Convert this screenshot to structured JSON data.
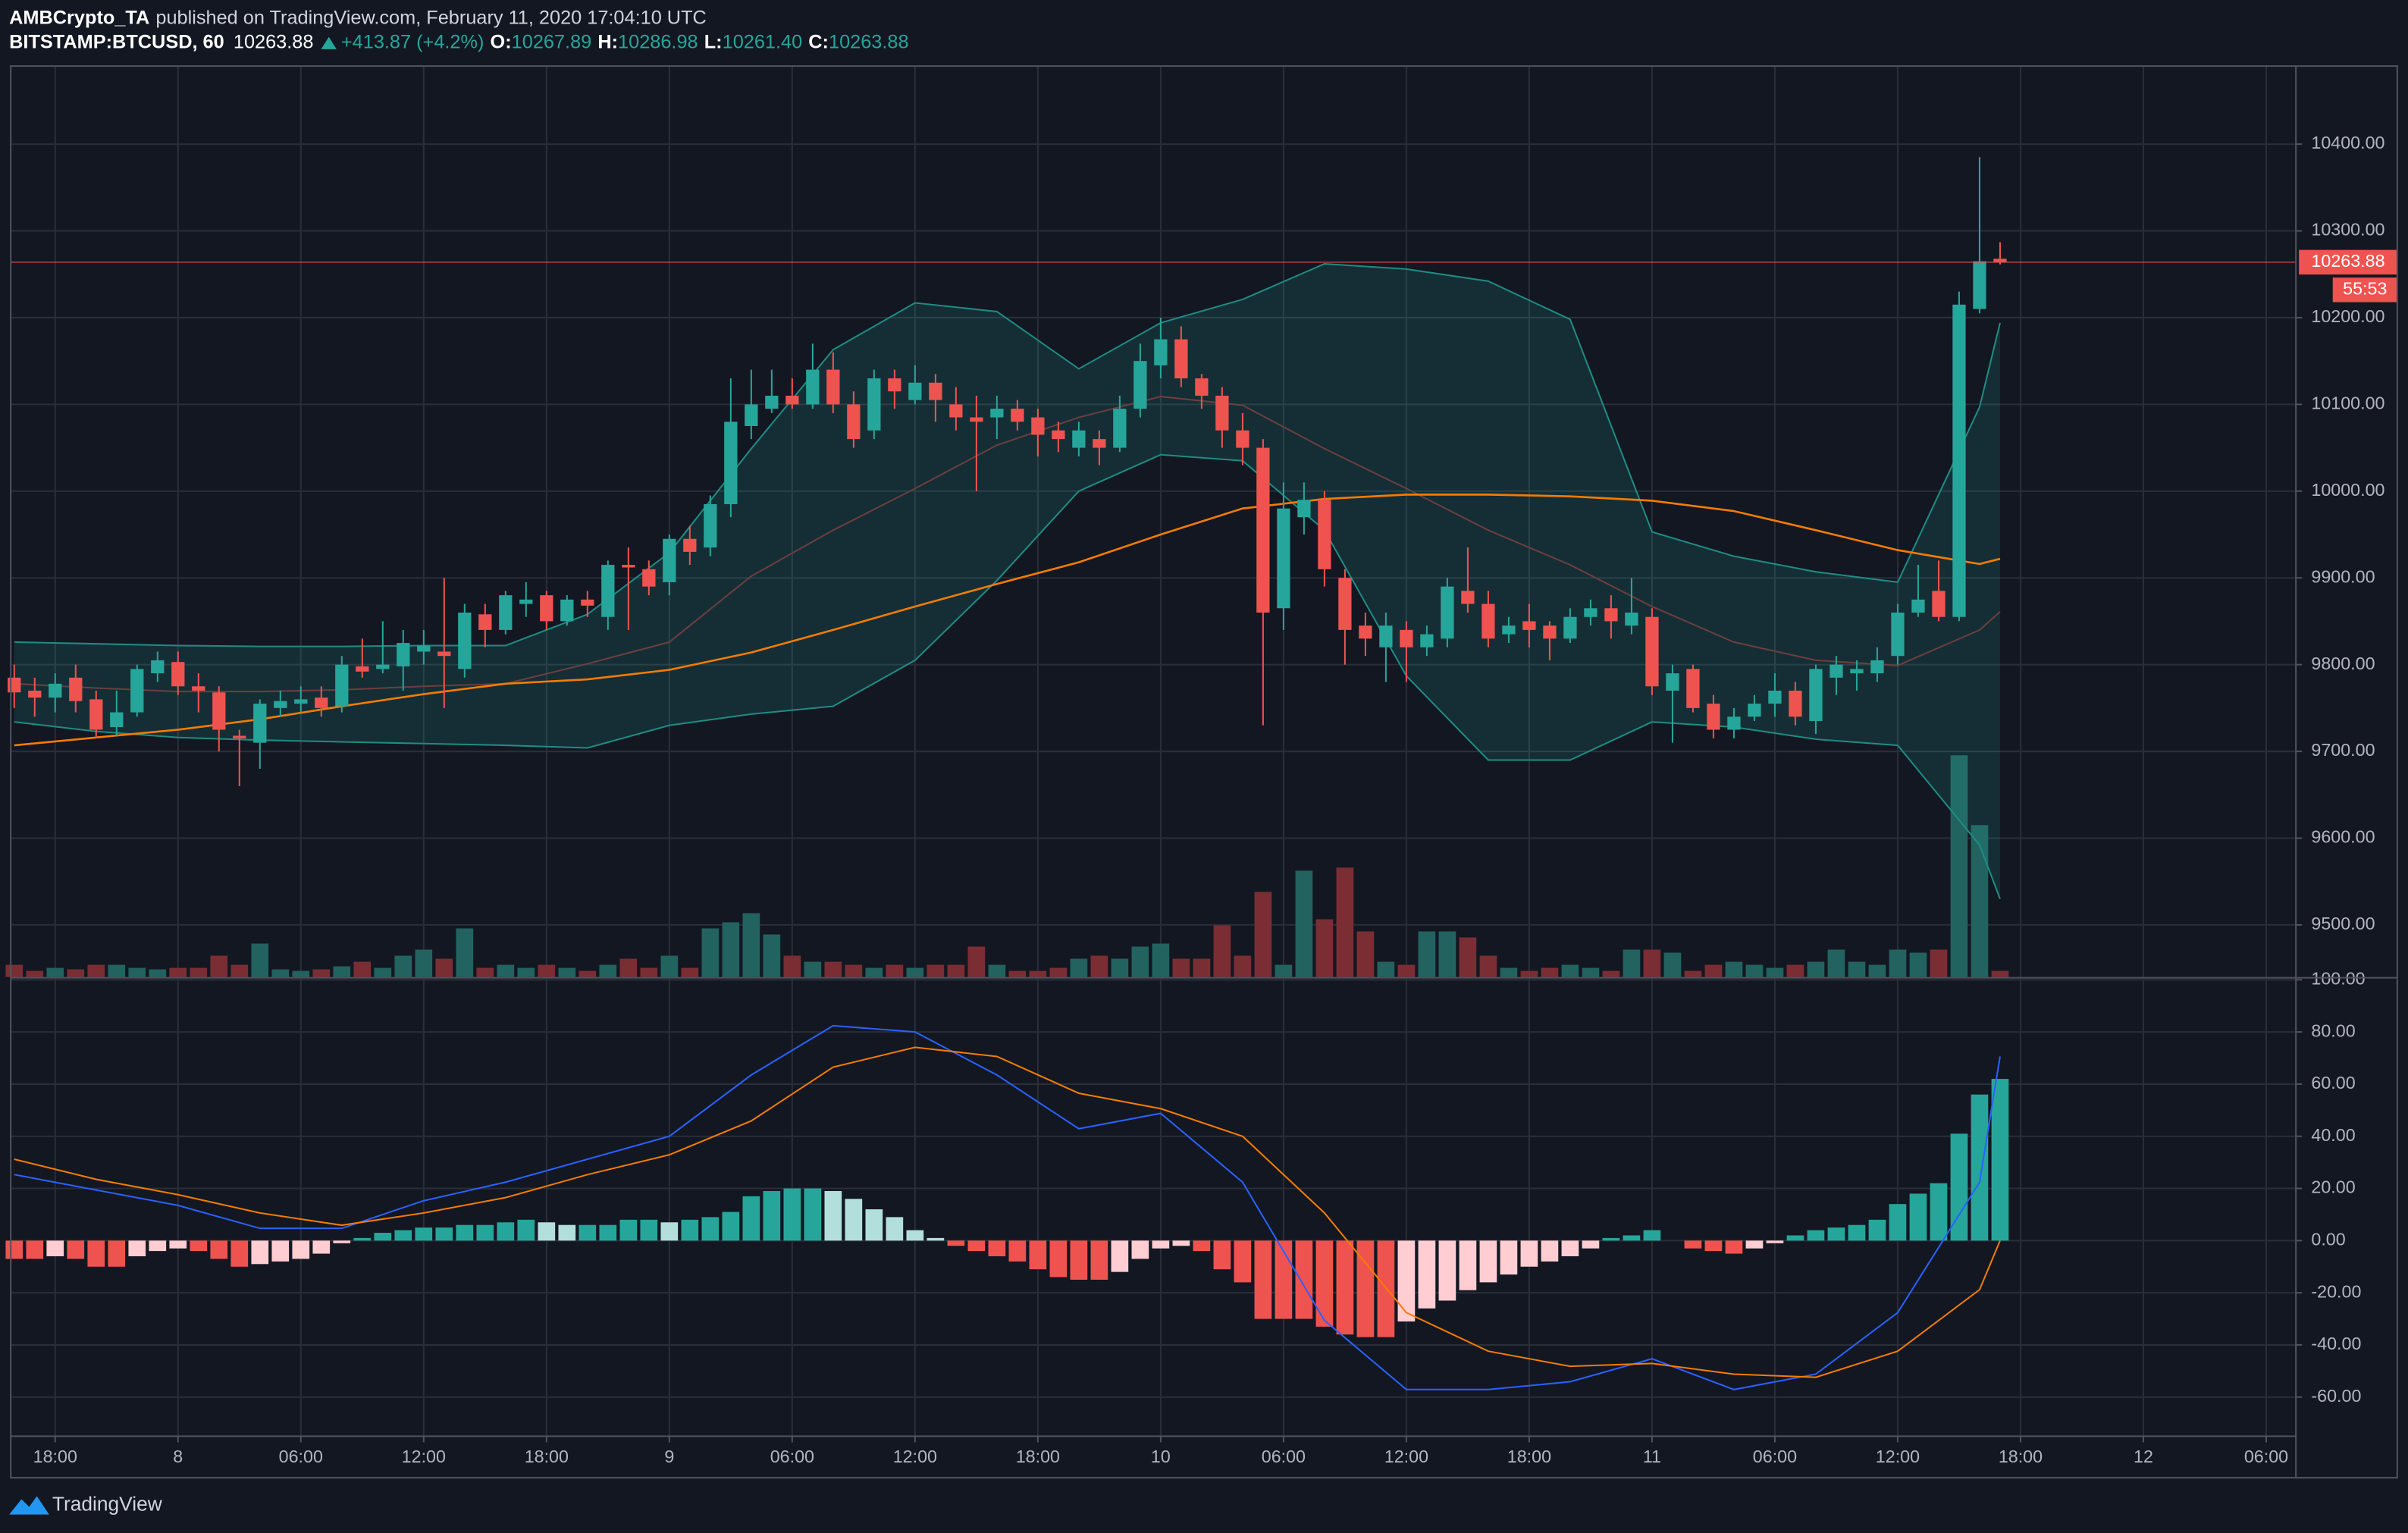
{
  "header": {
    "author": "AMBCrypto_TA",
    "published": "published on TradingView.com, February 11, 2020 17:04:10 UTC",
    "symbol": "BITSTAMP:BTCUSD, 60",
    "price": "10263.88",
    "change": "+413.87 (+4.2%)",
    "o_label": "O:",
    "o": "10267.89",
    "h_label": "H:",
    "h": "10286.98",
    "l_label": "L:",
    "l": "10261.40",
    "c_label": "C:",
    "c": "10263.88"
  },
  "footer": {
    "brand": "TradingView"
  },
  "chart_data": [
    {
      "type": "candlestick",
      "up_color": "#26a69a",
      "down_color": "#ef5350",
      "volume_up_color": "#22625f",
      "volume_down_color": "#7a2e33",
      "xlim": [
        -0.17,
        111.45
      ],
      "ylim": [
        9440,
        10490
      ],
      "yticks": [
        {
          "value": 9500,
          "label": "9500.00"
        },
        {
          "value": 9600,
          "label": "9600.00"
        },
        {
          "value": 9700,
          "label": "9700.00"
        },
        {
          "value": 9800,
          "label": "9800.00"
        },
        {
          "value": 9900,
          "label": "9900.00"
        },
        {
          "value": 10000,
          "label": "10000.00"
        },
        {
          "value": 10100,
          "label": "10100.00"
        },
        {
          "value": 10200,
          "label": "10200.00"
        },
        {
          "value": 10300,
          "label": "10300.00"
        },
        {
          "value": 10400,
          "label": "10400.00"
        }
      ],
      "grid": true,
      "candles": [
        [
          9785,
          9800,
          9750,
          9768
        ],
        [
          9770,
          9785,
          9740,
          9762
        ],
        [
          9762,
          9790,
          9745,
          9778
        ],
        [
          9785,
          9800,
          9745,
          9758
        ],
        [
          9760,
          9770,
          9715,
          9725
        ],
        [
          9728,
          9770,
          9718,
          9745
        ],
        [
          9745,
          9800,
          9740,
          9795
        ],
        [
          9790,
          9815,
          9780,
          9805
        ],
        [
          9803,
          9815,
          9765,
          9775
        ],
        [
          9775,
          9790,
          9745,
          9770
        ],
        [
          9768,
          9775,
          9700,
          9725
        ],
        [
          9718,
          9725,
          9660,
          9715
        ],
        [
          9710,
          9760,
          9680,
          9755
        ],
        [
          9750,
          9770,
          9740,
          9758
        ],
        [
          9755,
          9775,
          9745,
          9760
        ],
        [
          9762,
          9775,
          9740,
          9750
        ],
        [
          9752,
          9810,
          9745,
          9800
        ],
        [
          9798,
          9830,
          9785,
          9792
        ],
        [
          9795,
          9850,
          9790,
          9800
        ],
        [
          9798,
          9840,
          9770,
          9825
        ],
        [
          9815,
          9840,
          9800,
          9822
        ],
        [
          9815,
          9900,
          9750,
          9810
        ],
        [
          9795,
          9870,
          9785,
          9860
        ],
        [
          9858,
          9870,
          9820,
          9840
        ],
        [
          9840,
          9885,
          9835,
          9880
        ],
        [
          9870,
          9895,
          9855,
          9875
        ],
        [
          9880,
          9885,
          9840,
          9850
        ],
        [
          9850,
          9880,
          9845,
          9875
        ],
        [
          9875,
          9885,
          9855,
          9868
        ],
        [
          9855,
          9920,
          9840,
          9915
        ],
        [
          9915,
          9935,
          9840,
          9912
        ],
        [
          9910,
          9920,
          9880,
          9890
        ],
        [
          9895,
          9950,
          9880,
          9945
        ],
        [
          9945,
          9960,
          9915,
          9930
        ],
        [
          9935,
          9995,
          9925,
          9985
        ],
        [
          9985,
          10130,
          9970,
          10080
        ],
        [
          10075,
          10140,
          10060,
          10100
        ],
        [
          10095,
          10140,
          10090,
          10110
        ],
        [
          10110,
          10130,
          10095,
          10100
        ],
        [
          10100,
          10170,
          10095,
          10140
        ],
        [
          10140,
          10160,
          10090,
          10100
        ],
        [
          10100,
          10115,
          10050,
          10060
        ],
        [
          10070,
          10140,
          10060,
          10130
        ],
        [
          10130,
          10140,
          10095,
          10115
        ],
        [
          10105,
          10145,
          10100,
          10125
        ],
        [
          10125,
          10135,
          10080,
          10105
        ],
        [
          10100,
          10120,
          10070,
          10085
        ],
        [
          10085,
          10110,
          10000,
          10080
        ],
        [
          10085,
          10110,
          10060,
          10095
        ],
        [
          10095,
          10105,
          10070,
          10080
        ],
        [
          10085,
          10095,
          10040,
          10065
        ],
        [
          10070,
          10080,
          10045,
          10060
        ],
        [
          10050,
          10080,
          10040,
          10070
        ],
        [
          10060,
          10070,
          10030,
          10050
        ],
        [
          10050,
          10110,
          10045,
          10095
        ],
        [
          10095,
          10170,
          10085,
          10150
        ],
        [
          10145,
          10200,
          10130,
          10175
        ],
        [
          10175,
          10190,
          10120,
          10130
        ],
        [
          10130,
          10135,
          10095,
          10110
        ],
        [
          10110,
          10120,
          10050,
          10070
        ],
        [
          10070,
          10090,
          10030,
          10050
        ],
        [
          10050,
          10060,
          9730,
          9860
        ],
        [
          9865,
          10010,
          9840,
          9980
        ],
        [
          9970,
          10010,
          9950,
          9990
        ],
        [
          9990,
          10000,
          9890,
          9910
        ],
        [
          9900,
          9910,
          9800,
          9840
        ],
        [
          9845,
          9860,
          9810,
          9830
        ],
        [
          9820,
          9860,
          9780,
          9845
        ],
        [
          9840,
          9850,
          9780,
          9820
        ],
        [
          9820,
          9845,
          9810,
          9835
        ],
        [
          9830,
          9900,
          9820,
          9890
        ],
        [
          9885,
          9935,
          9860,
          9870
        ],
        [
          9870,
          9885,
          9820,
          9830
        ],
        [
          9835,
          9855,
          9825,
          9845
        ],
        [
          9850,
          9870,
          9820,
          9840
        ],
        [
          9845,
          9850,
          9805,
          9830
        ],
        [
          9830,
          9865,
          9825,
          9855
        ],
        [
          9855,
          9875,
          9845,
          9865
        ],
        [
          9865,
          9880,
          9830,
          9850
        ],
        [
          9845,
          9900,
          9835,
          9860
        ],
        [
          9855,
          9865,
          9765,
          9775
        ],
        [
          9770,
          9800,
          9710,
          9790
        ],
        [
          9795,
          9800,
          9745,
          9750
        ],
        [
          9755,
          9765,
          9715,
          9725
        ],
        [
          9725,
          9750,
          9715,
          9740
        ],
        [
          9740,
          9765,
          9735,
          9755
        ],
        [
          9755,
          9790,
          9740,
          9770
        ],
        [
          9770,
          9780,
          9730,
          9740
        ],
        [
          9735,
          9800,
          9720,
          9795
        ],
        [
          9785,
          9810,
          9765,
          9800
        ],
        [
          9790,
          9805,
          9770,
          9795
        ],
        [
          9790,
          9820,
          9780,
          9805
        ],
        [
          9810,
          9870,
          9800,
          9860
        ],
        [
          9860,
          9915,
          9855,
          9875
        ],
        [
          9885,
          9920,
          9850,
          9855
        ],
        [
          9855,
          10230,
          9850,
          10215
        ],
        [
          10210,
          10385,
          10205,
          10265
        ],
        [
          10267.89,
          10286.98,
          10261.4,
          10263.88
        ]
      ],
      "volume": {
        "ylim": [
          0,
          600
        ],
        "values": [
          8,
          4,
          6,
          5,
          8,
          8,
          6,
          5,
          6,
          6,
          14,
          8,
          22,
          5,
          4,
          5,
          7,
          10,
          6,
          14,
          18,
          12,
          32,
          6,
          8,
          6,
          8,
          6,
          4,
          8,
          12,
          6,
          14,
          6,
          32,
          36,
          42,
          28,
          14,
          10,
          10,
          8,
          6,
          8,
          6,
          8,
          8,
          20,
          8,
          4,
          4,
          6,
          12,
          14,
          12,
          20,
          22,
          12,
          12,
          34,
          14,
          56,
          8,
          70,
          38,
          72,
          30,
          10,
          8,
          30,
          30,
          26,
          14,
          6,
          4,
          6,
          8,
          6,
          4,
          18,
          18,
          16,
          4,
          8,
          10,
          8,
          6,
          8,
          10,
          18,
          10,
          8,
          18,
          16,
          18,
          146,
          100,
          4
        ]
      },
      "bands": {
        "fill": "rgba(38,166,154,0.16)",
        "line_color": "#1f8c83",
        "basis_color": "#6b3f3e",
        "x": [
          0,
          4,
          8,
          12,
          16,
          20,
          24,
          28,
          32,
          36,
          40,
          44,
          48,
          52,
          56,
          60,
          64,
          68,
          72,
          76,
          80,
          84,
          88,
          92,
          96,
          97
        ],
        "upper": [
          9826,
          9824,
          9822,
          9821,
          9821,
          9822,
          9822,
          9858,
          9929,
          10049,
          10163,
          10217,
          10207,
          10141,
          10194,
          10221,
          10262,
          10256,
          10242,
          10198,
          9953,
          9925,
          9907,
          9895,
          10097,
          10194
        ],
        "basis": [
          9778,
          9773,
          9769,
          9769,
          9771,
          9775,
          9778,
          9801,
          9826,
          9902,
          9955,
          10003,
          10053,
          10085,
          10109,
          10099,
          10049,
          10003,
          9955,
          9915,
          9867,
          9826,
          9805,
          9799,
          9840,
          9861
        ],
        "lower": [
          9734,
          9723,
          9716,
          9713,
          9711,
          9709,
          9707,
          9704,
          9730,
          9743,
          9752,
          9805,
          9897,
          10000,
          10042,
          10035,
          9955,
          9787,
          9690,
          9690,
          9734,
          9728,
          9714,
          9707,
          9592,
          9530
        ]
      },
      "ma": {
        "color": "#f57c00",
        "x": [
          0,
          4,
          8,
          12,
          16,
          20,
          24,
          28,
          32,
          36,
          40,
          44,
          48,
          52,
          56,
          60,
          64,
          68,
          72,
          76,
          80,
          84,
          88,
          92,
          96,
          97
        ],
        "values": [
          9707,
          9716,
          9725,
          9737,
          9752,
          9766,
          9778,
          9783,
          9794,
          9814,
          9840,
          9867,
          9893,
          9918,
          9950,
          9980,
          9991,
          9996,
          9996,
          9994,
          9989,
          9977,
          9955,
          9932,
          9916,
          9922
        ]
      },
      "last_price": 10263.88,
      "last_price_color": "#ef5350",
      "countdown": "55:53"
    },
    {
      "type": "macd",
      "xlim": [
        -0.17,
        111.45
      ],
      "ylim": [
        -75,
        100.5
      ],
      "xticks": [
        {
          "value": 2,
          "label": "18:00"
        },
        {
          "value": 8,
          "label": "8"
        },
        {
          "value": 14,
          "label": "06:00"
        },
        {
          "value": 20,
          "label": "12:00"
        },
        {
          "value": 26,
          "label": "18:00"
        },
        {
          "value": 32,
          "label": "9"
        },
        {
          "value": 38,
          "label": "06:00"
        },
        {
          "value": 44,
          "label": "12:00"
        },
        {
          "value": 50,
          "label": "18:00"
        },
        {
          "value": 56,
          "label": "10"
        },
        {
          "value": 62,
          "label": "06:00"
        },
        {
          "value": 68,
          "label": "12:00"
        },
        {
          "value": 74,
          "label": "18:00"
        },
        {
          "value": 80,
          "label": "11"
        },
        {
          "value": 86,
          "label": "06:00"
        },
        {
          "value": 92,
          "label": "12:00"
        },
        {
          "value": 98,
          "label": "18:00"
        },
        {
          "value": 104,
          "label": "12"
        },
        {
          "value": 110,
          "label": "06:00"
        }
      ],
      "yticks": [
        {
          "value": -60,
          "label": "-60.00"
        },
        {
          "value": -40,
          "label": "-40.00"
        },
        {
          "value": -20,
          "label": "-20.00"
        },
        {
          "value": 0,
          "label": "0.00"
        },
        {
          "value": 20,
          "label": "20.00"
        },
        {
          "value": 40,
          "label": "40.00"
        },
        {
          "value": 60,
          "label": "60.00"
        },
        {
          "value": 80,
          "label": "80.00"
        },
        {
          "value": 100,
          "label": "100.00"
        }
      ],
      "grid": true,
      "histogram_colors": {
        "rising_above": "#26a69a",
        "falling_above": "#b2dfdb",
        "falling_below": "#ef5350",
        "rising_below": "#ffcdd2"
      },
      "histogram": [
        -7,
        -7,
        -6,
        -7,
        -10,
        -10,
        -6,
        -4,
        -3,
        -4,
        -7,
        -10,
        -9,
        -8,
        -7,
        -5,
        -1,
        1,
        3,
        4,
        5,
        5,
        6,
        6,
        7,
        8,
        7,
        6,
        6,
        6,
        8,
        8,
        7,
        8,
        9,
        11,
        17,
        19,
        20,
        20,
        19,
        16,
        12,
        9,
        4,
        1,
        -2,
        -4,
        -6,
        -8,
        -11,
        -14,
        -15,
        -15,
        -12,
        -7,
        -3,
        -2,
        -4,
        -11,
        -16,
        -30,
        -30,
        -30,
        -33,
        -36,
        -37,
        -37,
        -31,
        -26,
        -23,
        -19,
        -16,
        -13,
        -10,
        -8,
        -6,
        -3,
        1,
        2,
        4,
        0,
        -3,
        -4,
        -5,
        -3,
        -1,
        2,
        4,
        5,
        6,
        8,
        14,
        18,
        22,
        41,
        56,
        62
      ],
      "macd": {
        "color": "#2962ff",
        "x": [
          0,
          4,
          8,
          12,
          16,
          20,
          24,
          28,
          32,
          36,
          40,
          44,
          48,
          52,
          56,
          60,
          64,
          68,
          72,
          76,
          80,
          84,
          88,
          92,
          96,
          97
        ],
        "values": [
          25.3,
          19.4,
          13.5,
          4.7,
          4.7,
          15.3,
          22.4,
          31.2,
          40,
          63.5,
          82.4,
          80,
          63.5,
          42.9,
          48.8,
          22.4,
          -30.6,
          -57.1,
          -57.1,
          -54.1,
          -45.3,
          -57.1,
          -51.2,
          -27.6,
          22.4,
          70.6
        ]
      },
      "signal": {
        "color": "#f57c00",
        "x": [
          0,
          4,
          8,
          12,
          16,
          20,
          24,
          28,
          32,
          36,
          40,
          44,
          48,
          52,
          56,
          60,
          64,
          68,
          72,
          76,
          80,
          84,
          88,
          92,
          96,
          97
        ],
        "values": [
          31.2,
          23.5,
          17.6,
          10.6,
          5.9,
          10.6,
          16.5,
          25.3,
          32.9,
          45.9,
          66.5,
          74.1,
          70.6,
          56.5,
          50.6,
          40,
          10.6,
          -27.6,
          -42.4,
          -48.2,
          -47.1,
          -51.2,
          -52.4,
          -42.4,
          -18.8,
          0
        ]
      }
    }
  ]
}
